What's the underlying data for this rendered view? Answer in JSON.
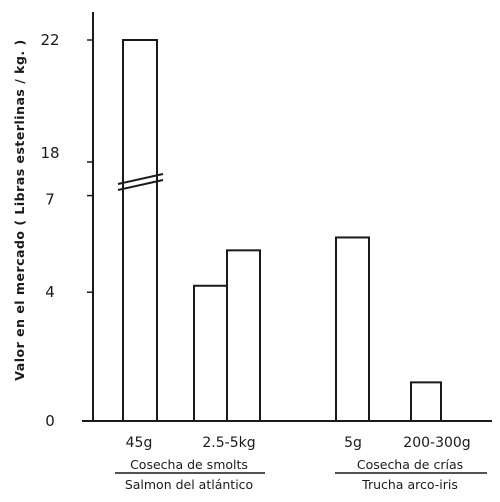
{
  "chart_data": {
    "type": "bar",
    "ylabel": "Valor en el mercado ( Libras esterlinas / kg. )",
    "y_axis_break": {
      "lower": 7,
      "upper": 18
    },
    "yticks": [
      {
        "value": 0,
        "label": "0"
      },
      {
        "value": 4,
        "label": "4"
      },
      {
        "value": 7,
        "label": "7"
      },
      {
        "value": 18,
        "label": "18"
      },
      {
        "value": 22,
        "label": "22"
      }
    ],
    "categories": [
      "45g",
      "2.5-5kg",
      "5g",
      "200-300g"
    ],
    "bars": [
      {
        "category": "45g",
        "value": 22
      },
      {
        "category": "2.5-5kg",
        "value": 4.2
      },
      {
        "category": "2.5-5kg",
        "value": 5.3
      },
      {
        "category": "5g",
        "value": 5.7
      },
      {
        "category": "200-300g",
        "value": 1.2
      }
    ],
    "groups": [
      {
        "title": "Cosecha de smolts",
        "subtitle": "Salmon del atlántico",
        "categories": [
          "45g",
          "2.5-5kg"
        ]
      },
      {
        "title": "Cosecha de crías",
        "subtitle": "Trucha arco-iris",
        "categories": [
          "5g",
          "200-300g"
        ]
      }
    ],
    "grid": false
  }
}
